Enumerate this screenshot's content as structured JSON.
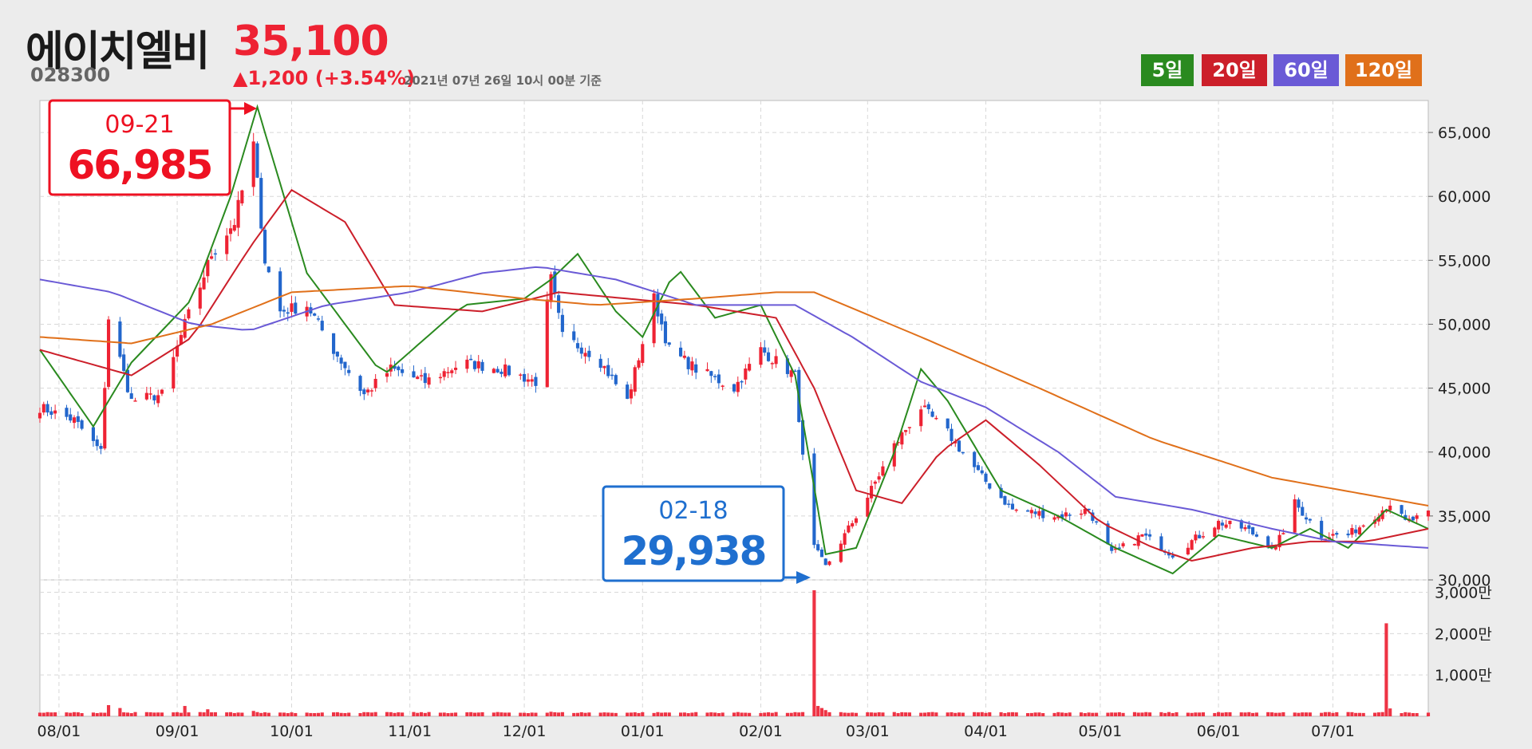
{
  "header": {
    "name": "에이치엘비",
    "price": "35,100",
    "code": "028300",
    "change": "▲1,200 (+3.54%)",
    "asof": "2021년 07년 26일 10시 00분 기준"
  },
  "legend": [
    {
      "label": "5일",
      "color": "#2a8a1f"
    },
    {
      "label": "20일",
      "color": "#cc1f2a"
    },
    {
      "label": "60일",
      "color": "#6a5ad6"
    },
    {
      "label": "120일",
      "color": "#e0701a"
    }
  ],
  "chart_data": {
    "type": "candlestick",
    "x_range": [
      "2020-07-27",
      "2021-07-26"
    ],
    "price_ylim": [
      30000,
      67500
    ],
    "price_ticks": [
      "65,000",
      "60,000",
      "55,000",
      "50,000",
      "45,000",
      "40,000",
      "35,000",
      "30,000"
    ],
    "volume_ticks": [
      "3,000만",
      "2,000만",
      "1,000만"
    ],
    "x_ticks": [
      "08/01",
      "09/01",
      "10/01",
      "11/01",
      "12/01",
      "01/01",
      "02/01",
      "03/01",
      "04/01",
      "05/01",
      "06/01",
      "07/01"
    ],
    "annotations": [
      {
        "date": "09-21",
        "value": "66,985",
        "kind": "high",
        "color": "#ee1122"
      },
      {
        "date": "02-18",
        "value": "29,938",
        "kind": "low",
        "color": "#1f6fcf"
      }
    ],
    "colors": {
      "up": "#ee2233",
      "down": "#2266cc",
      "volume": "#ee3344"
    },
    "close_keypoints": [
      [
        "2020-07-27",
        43500
      ],
      [
        "2020-08-05",
        42500
      ],
      [
        "2020-08-12",
        40000
      ],
      [
        "2020-08-14",
        50500
      ],
      [
        "2020-08-20",
        44000
      ],
      [
        "2020-08-28",
        44500
      ],
      [
        "2020-09-03",
        50000
      ],
      [
        "2020-09-07",
        53000
      ],
      [
        "2020-09-10",
        55500
      ],
      [
        "2020-09-16",
        58000
      ],
      [
        "2020-09-21",
        64000
      ],
      [
        "2020-09-24",
        55000
      ],
      [
        "2020-09-28",
        51000
      ],
      [
        "2020-10-05",
        51500
      ],
      [
        "2020-10-12",
        48000
      ],
      [
        "2020-10-20",
        44500
      ],
      [
        "2020-10-27",
        46500
      ],
      [
        "2020-11-05",
        45500
      ],
      [
        "2020-11-15",
        47000
      ],
      [
        "2020-11-25",
        46500
      ],
      [
        "2020-12-04",
        45500
      ],
      [
        "2020-12-08",
        53500
      ],
      [
        "2020-12-11",
        49000
      ],
      [
        "2020-12-20",
        47500
      ],
      [
        "2020-12-28",
        44000
      ],
      [
        "2021-01-04",
        52000
      ],
      [
        "2021-01-08",
        48000
      ],
      [
        "2021-01-15",
        46500
      ],
      [
        "2021-01-25",
        45000
      ],
      [
        "2021-02-01",
        48000
      ],
      [
        "2021-02-10",
        46000
      ],
      [
        "2021-02-14",
        33000
      ],
      [
        "2021-02-18",
        31000
      ],
      [
        "2021-02-22",
        33000
      ],
      [
        "2021-03-01",
        36500
      ],
      [
        "2021-03-08",
        40500
      ],
      [
        "2021-03-15",
        43500
      ],
      [
        "2021-03-22",
        41500
      ],
      [
        "2021-03-31",
        38000
      ],
      [
        "2021-04-08",
        35500
      ],
      [
        "2021-04-20",
        35000
      ],
      [
        "2021-04-28",
        35500
      ],
      [
        "2021-05-04",
        32000
      ],
      [
        "2021-05-12",
        33500
      ],
      [
        "2021-05-20",
        32000
      ],
      [
        "2021-06-01",
        34500
      ],
      [
        "2021-06-08",
        34000
      ],
      [
        "2021-06-16",
        32500
      ],
      [
        "2021-06-21",
        36000
      ],
      [
        "2021-06-28",
        33500
      ],
      [
        "2021-07-05",
        33500
      ],
      [
        "2021-07-14",
        35500
      ],
      [
        "2021-07-16",
        36000
      ],
      [
        "2021-07-20",
        34500
      ],
      [
        "2021-07-26",
        35100
      ]
    ],
    "ma_keypoints": {
      "5일": [
        [
          "2020-07-27",
          48000
        ],
        [
          "2020-08-10",
          42000
        ],
        [
          "2020-08-20",
          47000
        ],
        [
          "2020-09-05",
          52000
        ],
        [
          "2020-09-15",
          60000
        ],
        [
          "2020-09-22",
          67000
        ],
        [
          "2020-10-05",
          54000
        ],
        [
          "2020-10-15",
          50000
        ],
        [
          "2020-10-25",
          46000
        ],
        [
          "2020-11-15",
          51500
        ],
        [
          "2020-12-01",
          52000
        ],
        [
          "2020-12-08",
          53500
        ],
        [
          "2020-12-15",
          55500
        ],
        [
          "2020-12-25",
          51000
        ],
        [
          "2021-01-01",
          49000
        ],
        [
          "2021-01-10",
          54500
        ],
        [
          "2021-01-20",
          50500
        ],
        [
          "2021-02-01",
          51500
        ],
        [
          "2021-02-10",
          46000
        ],
        [
          "2021-02-18",
          32000
        ],
        [
          "2021-02-26",
          32500
        ],
        [
          "2021-03-08",
          40000
        ],
        [
          "2021-03-15",
          46500
        ],
        [
          "2021-03-22",
          44000
        ],
        [
          "2021-04-05",
          37000
        ],
        [
          "2021-04-20",
          35000
        ],
        [
          "2021-05-05",
          32500
        ],
        [
          "2021-05-20",
          30500
        ],
        [
          "2021-06-01",
          33500
        ],
        [
          "2021-06-15",
          32500
        ],
        [
          "2021-06-25",
          34000
        ],
        [
          "2021-07-05",
          32500
        ],
        [
          "2021-07-15",
          35500
        ],
        [
          "2021-07-26",
          34000
        ]
      ],
      "20일": [
        [
          "2020-07-27",
          48000
        ],
        [
          "2020-08-20",
          46000
        ],
        [
          "2020-09-05",
          49000
        ],
        [
          "2020-09-20",
          56000
        ],
        [
          "2020-10-01",
          60500
        ],
        [
          "2020-10-15",
          58000
        ],
        [
          "2020-10-28",
          51500
        ],
        [
          "2020-11-20",
          51000
        ],
        [
          "2020-12-10",
          52500
        ],
        [
          "2020-12-28",
          52000
        ],
        [
          "2021-01-15",
          51500
        ],
        [
          "2021-02-05",
          50500
        ],
        [
          "2021-02-15",
          45000
        ],
        [
          "2021-02-26",
          37000
        ],
        [
          "2021-03-10",
          36000
        ],
        [
          "2021-03-20",
          40000
        ],
        [
          "2021-04-01",
          42500
        ],
        [
          "2021-04-15",
          39000
        ],
        [
          "2021-05-01",
          34500
        ],
        [
          "2021-05-15",
          32500
        ],
        [
          "2021-05-25",
          31500
        ],
        [
          "2021-06-10",
          32500
        ],
        [
          "2021-06-25",
          33000
        ],
        [
          "2021-07-10",
          33000
        ],
        [
          "2021-07-26",
          34000
        ]
      ],
      "60일": [
        [
          "2020-07-27",
          53500
        ],
        [
          "2020-08-15",
          52500
        ],
        [
          "2020-09-05",
          50000
        ],
        [
          "2020-09-20",
          49500
        ],
        [
          "2020-10-10",
          51500
        ],
        [
          "2020-11-01",
          52500
        ],
        [
          "2020-11-20",
          54000
        ],
        [
          "2020-12-05",
          54500
        ],
        [
          "2020-12-25",
          53500
        ],
        [
          "2021-01-15",
          51500
        ],
        [
          "2021-02-10",
          51500
        ],
        [
          "2021-02-25",
          49000
        ],
        [
          "2021-03-15",
          45500
        ],
        [
          "2021-04-01",
          43500
        ],
        [
          "2021-04-20",
          40000
        ],
        [
          "2021-05-05",
          36500
        ],
        [
          "2021-05-25",
          35500
        ],
        [
          "2021-06-15",
          34000
        ],
        [
          "2021-07-01",
          33000
        ],
        [
          "2021-07-26",
          32500
        ]
      ],
      "120일": [
        [
          "2020-07-27",
          49000
        ],
        [
          "2020-08-20",
          48500
        ],
        [
          "2020-09-10",
          50000
        ],
        [
          "2020-10-01",
          52500
        ],
        [
          "2020-11-01",
          53000
        ],
        [
          "2020-12-01",
          52000
        ],
        [
          "2020-12-20",
          51500
        ],
        [
          "2021-01-15",
          52000
        ],
        [
          "2021-02-05",
          52500
        ],
        [
          "2021-02-15",
          52500
        ],
        [
          "2021-03-15",
          49000
        ],
        [
          "2021-04-15",
          45000
        ],
        [
          "2021-05-15",
          41000
        ],
        [
          "2021-06-15",
          38000
        ],
        [
          "2021-07-26",
          35800
        ]
      ]
    },
    "volume_normal": 900000,
    "volume_spikes": [
      [
        "2020-08-14",
        2700000
      ],
      [
        "2020-08-17",
        2000000
      ],
      [
        "2020-09-03",
        2500000
      ],
      [
        "2020-09-09",
        1700000
      ],
      [
        "2020-09-21",
        1300000
      ],
      [
        "2020-12-08",
        1100000
      ],
      [
        "2021-02-15",
        30500000
      ],
      [
        "2021-02-16",
        2500000
      ],
      [
        "2021-02-17",
        2000000
      ],
      [
        "2021-02-18",
        1500000
      ],
      [
        "2021-07-15",
        22500000
      ],
      [
        "2021-07-16",
        1900000
      ]
    ]
  }
}
